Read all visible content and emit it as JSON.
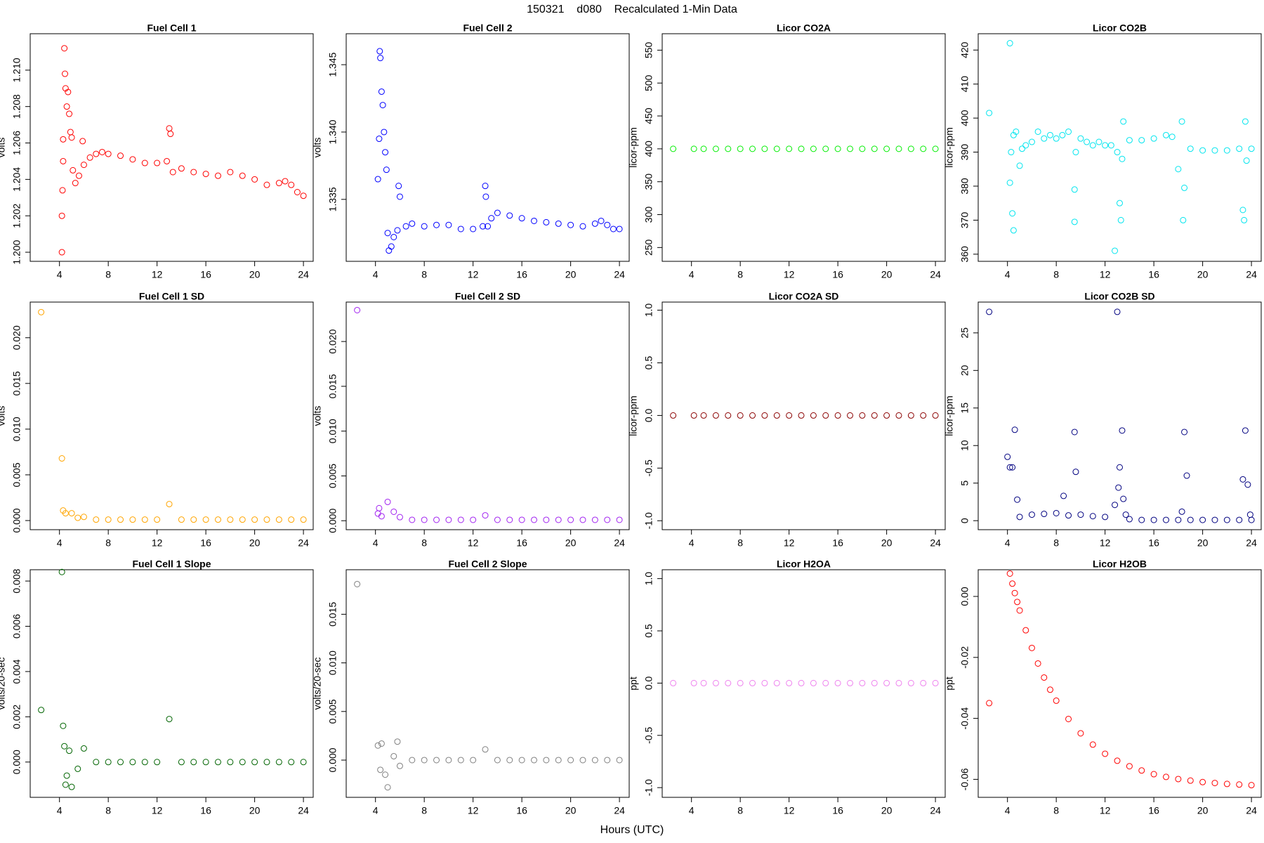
{
  "title": "150321    d080    Recalculated 1-Min Data",
  "xlabel": "Hours (UTC)",
  "chart_data": [
    {
      "type": "scatter",
      "title": "Fuel Cell 1",
      "ylabel": "volts",
      "color": "#ff0000",
      "x": [
        4.2,
        4.2,
        4.25,
        4.3,
        4.3,
        4.4,
        4.45,
        4.5,
        4.6,
        4.7,
        4.8,
        4.9,
        5.0,
        5.1,
        5.3,
        5.6,
        5.9,
        6.0,
        6.5,
        7.0,
        7.5,
        8,
        9,
        10,
        11,
        12,
        12.8,
        13,
        13.1,
        13.3,
        14,
        15,
        16,
        17,
        18,
        19,
        20,
        21,
        22,
        22.5,
        23,
        23.5,
        24
      ],
      "values": [
        1.2,
        1.202,
        1.2034,
        1.205,
        1.2062,
        1.2112,
        1.2098,
        1.209,
        1.208,
        1.2088,
        1.2076,
        1.2066,
        1.2063,
        1.2045,
        1.2038,
        1.2042,
        1.2061,
        1.2048,
        1.2052,
        1.2054,
        1.2055,
        1.2054,
        1.2053,
        1.2051,
        1.2049,
        1.2049,
        1.205,
        1.2068,
        1.2065,
        1.2044,
        1.2046,
        1.2044,
        1.2043,
        1.2042,
        1.2044,
        1.2042,
        1.204,
        1.2037,
        1.2038,
        1.2039,
        1.2037,
        1.2033,
        1.2031
      ],
      "xlim": [
        1.6,
        24.8
      ],
      "xticks": [
        4,
        8,
        12,
        16,
        20,
        24
      ],
      "ylim": [
        1.1995,
        1.212
      ],
      "yticks": [
        {
          "value": 1.2,
          "label": "1.200"
        },
        1.202,
        1.204,
        1.206,
        1.208,
        {
          "value": 1.21,
          "label": "1.210"
        }
      ]
    },
    {
      "type": "scatter",
      "title": "Fuel Cell 2",
      "ylabel": "volts",
      "color": "#0000ff",
      "x": [
        4.2,
        4.3,
        4.35,
        4.4,
        4.5,
        4.6,
        4.7,
        4.8,
        4.9,
        5.0,
        5.1,
        5.3,
        5.5,
        5.8,
        5.9,
        6.0,
        6.5,
        7,
        8,
        9,
        10,
        11,
        12,
        12.8,
        13,
        13.05,
        13.2,
        13.5,
        14,
        15,
        16,
        17,
        18,
        19,
        20,
        21,
        22,
        22.5,
        23,
        23.5,
        24
      ],
      "values": [
        1.3365,
        1.3395,
        1.346,
        1.3455,
        1.343,
        1.342,
        1.34,
        1.3385,
        1.3372,
        1.3325,
        1.3312,
        1.3315,
        1.3322,
        1.3327,
        1.336,
        1.3352,
        1.333,
        1.3332,
        1.333,
        1.3331,
        1.3331,
        1.3328,
        1.3328,
        1.333,
        1.336,
        1.3352,
        1.333,
        1.3336,
        1.334,
        1.3338,
        1.3336,
        1.3334,
        1.3333,
        1.3332,
        1.3331,
        1.333,
        1.3332,
        1.3334,
        1.3331,
        1.3328,
        1.3328
      ],
      "xlim": [
        1.6,
        24.8
      ],
      "xticks": [
        4,
        8,
        12,
        16,
        20,
        24
      ],
      "ylim": [
        1.3304,
        1.3473
      ],
      "yticks": [
        1.335,
        {
          "value": 1.34,
          "label": "1.340"
        },
        1.345
      ]
    },
    {
      "type": "scatter",
      "title": "Licor CO2A",
      "ylabel": "licor-ppm",
      "color": "#00ee00",
      "x": [
        2.5,
        4.2,
        5,
        6,
        7,
        8,
        9,
        10,
        11,
        12,
        13,
        14,
        15,
        16,
        17,
        18,
        19,
        20,
        21,
        22,
        23,
        24
      ],
      "values": [
        400,
        400,
        400,
        400,
        400,
        400,
        400,
        400,
        400,
        400,
        400,
        400,
        400,
        400,
        400,
        400,
        400,
        400,
        400,
        400,
        400,
        400
      ],
      "xlim": [
        1.6,
        24.8
      ],
      "xticks": [
        4,
        8,
        12,
        16,
        20,
        24
      ],
      "ylim": [
        229,
        575
      ],
      "yticks": [
        250,
        300,
        350,
        400,
        450,
        500,
        550
      ]
    },
    {
      "type": "scatter",
      "title": "Licor CO2B",
      "ylabel": "licor-ppm",
      "color": "#00e5ee",
      "x": [
        2.5,
        4.2,
        4.2,
        4.3,
        4.4,
        4.5,
        4.5,
        4.7,
        5,
        5.2,
        5.5,
        6,
        6.5,
        7,
        7.5,
        8,
        8.5,
        9,
        9.5,
        9.5,
        9.6,
        10,
        10.5,
        11,
        11.5,
        12,
        12.5,
        12.8,
        13,
        13.2,
        13.3,
        13.4,
        13.5,
        14,
        15,
        16,
        17,
        17.5,
        18,
        18.3,
        18.4,
        18.5,
        19,
        20,
        21,
        22,
        23,
        23.3,
        23.4,
        23.5,
        23.6,
        24
      ],
      "values": [
        401.5,
        422,
        381,
        390,
        372,
        367,
        395,
        396,
        386,
        391,
        392,
        393,
        396,
        394,
        395,
        394,
        395,
        396,
        379,
        369.5,
        390,
        394,
        393,
        392,
        393,
        392,
        392,
        361,
        390,
        375,
        370,
        388,
        399,
        393.5,
        393.5,
        394,
        395,
        394.5,
        385,
        399,
        370,
        379.5,
        391,
        390.5,
        390.5,
        390.5,
        391,
        373,
        370,
        399,
        387.5,
        391
      ],
      "xlim": [
        1.6,
        24.8
      ],
      "xticks": [
        4,
        8,
        12,
        16,
        20,
        24
      ],
      "ylim": [
        357.9,
        424.8
      ],
      "yticks": [
        360,
        370,
        380,
        390,
        400,
        410,
        420
      ]
    },
    {
      "type": "scatter",
      "title": "Fuel Cell 1 SD",
      "ylabel": "volts",
      "color": "#ffa500",
      "x": [
        2.5,
        4.2,
        4.3,
        4.5,
        5,
        5.5,
        6,
        7,
        8,
        9,
        10,
        11,
        12,
        13,
        14,
        15,
        16,
        17,
        18,
        19,
        20,
        21,
        22,
        23,
        24
      ],
      "values": [
        0.0228,
        0.0068,
        0.0011,
        0.0008,
        0.0008,
        0.0003,
        0.0004,
        0.0001,
        0.0001,
        0.0001,
        0.0001,
        0.0001,
        0.0001,
        0.0018,
        0.0001,
        0.0001,
        0.0001,
        0.0001,
        0.0001,
        0.0001,
        0.0001,
        0.0001,
        0.0001,
        0.0001,
        0.0001
      ],
      "xlim": [
        1.6,
        24.8
      ],
      "xticks": [
        4,
        8,
        12,
        16,
        20,
        24
      ],
      "ylim": [
        -0.001,
        0.0239
      ],
      "yticks": [
        {
          "value": 0,
          "label": "0.000"
        },
        0.005,
        {
          "value": 0.01,
          "label": "0.010"
        },
        0.015,
        {
          "value": 0.02,
          "label": "0.020"
        }
      ]
    },
    {
      "type": "scatter",
      "title": "Fuel Cell 2 SD",
      "ylabel": "volts",
      "color": "#a020f0",
      "x": [
        2.5,
        4.2,
        4.3,
        4.5,
        5,
        5.5,
        6,
        7,
        8,
        9,
        10,
        11,
        12,
        13,
        14,
        15,
        16,
        17,
        18,
        19,
        20,
        21,
        22,
        23,
        24
      ],
      "values": [
        0.0235,
        0.0008,
        0.0014,
        0.0005,
        0.0021,
        0.001,
        0.0004,
        0.0001,
        0.0001,
        0.0001,
        0.0001,
        0.0001,
        0.0001,
        0.0006,
        0.0001,
        0.0001,
        0.0001,
        0.0001,
        0.0001,
        0.0001,
        0.0001,
        0.0001,
        0.0001,
        0.0001,
        0.0001
      ],
      "xlim": [
        1.6,
        24.8
      ],
      "xticks": [
        4,
        8,
        12,
        16,
        20,
        24
      ],
      "ylim": [
        -0.001,
        0.0244
      ],
      "yticks": [
        {
          "value": 0,
          "label": "0.000"
        },
        0.005,
        {
          "value": 0.01,
          "label": "0.010"
        },
        0.015,
        {
          "value": 0.02,
          "label": "0.020"
        }
      ]
    },
    {
      "type": "scatter",
      "title": "Licor CO2A SD",
      "ylabel": "licor-ppm",
      "color": "#8b0000",
      "x": [
        2.5,
        4.2,
        5,
        6,
        7,
        8,
        9,
        10,
        11,
        12,
        13,
        14,
        15,
        16,
        17,
        18,
        19,
        20,
        21,
        22,
        23,
        24
      ],
      "values": [
        0,
        0,
        0,
        0,
        0,
        0,
        0,
        0,
        0,
        0,
        0,
        0,
        0,
        0,
        0,
        0,
        0,
        0,
        0,
        0,
        0,
        0
      ],
      "xlim": [
        1.6,
        24.8
      ],
      "xticks": [
        4,
        8,
        12,
        16,
        20,
        24
      ],
      "ylim": [
        -1.085,
        1.077
      ],
      "yticks": [
        {
          "value": -1,
          "label": "-1.0"
        },
        -0.5,
        {
          "value": 0,
          "label": "0.0"
        },
        0.5,
        {
          "value": 1,
          "label": "1.0"
        }
      ]
    },
    {
      "type": "scatter",
      "title": "Licor CO2B SD",
      "ylabel": "licor-ppm",
      "color": "#000080",
      "x": [
        2.5,
        4,
        4.2,
        4.4,
        4.6,
        4.8,
        5,
        6,
        7,
        8,
        8.6,
        9,
        9.5,
        9.6,
        10,
        11,
        12,
        12.8,
        13,
        13.1,
        13.2,
        13.4,
        13.5,
        13.7,
        14,
        15,
        16,
        17,
        18,
        18.3,
        18.5,
        18.7,
        19,
        20,
        21,
        22,
        23,
        23.3,
        23.5,
        23.7,
        23.9,
        24
      ],
      "values": [
        27.8,
        8.5,
        7.1,
        7.1,
        12.1,
        2.8,
        0.5,
        0.8,
        0.9,
        1.0,
        3.3,
        0.7,
        11.8,
        6.5,
        0.8,
        0.6,
        0.5,
        2.1,
        27.8,
        4.4,
        7.1,
        12.0,
        2.9,
        0.8,
        0.2,
        0.1,
        0.1,
        0.1,
        0.1,
        1.2,
        11.8,
        6.0,
        0.1,
        0.1,
        0.1,
        0.1,
        0.1,
        5.5,
        12.0,
        4.8,
        0.8,
        0.1
      ],
      "xlim": [
        1.6,
        24.8
      ],
      "xticks": [
        4,
        8,
        12,
        16,
        20,
        24
      ],
      "ylim": [
        -1.2,
        29.1
      ],
      "yticks": [
        0,
        5,
        10,
        15,
        20,
        25
      ]
    },
    {
      "type": "scatter",
      "title": "Fuel Cell 1 Slope",
      "ylabel": "volts/20-sec",
      "color": "#006400",
      "x": [
        2.5,
        4.2,
        4.3,
        4.4,
        4.5,
        4.6,
        4.8,
        5,
        5.5,
        6,
        7,
        8,
        9,
        10,
        11,
        12,
        13,
        14,
        15,
        16,
        17,
        18,
        19,
        20,
        21,
        22,
        23,
        24
      ],
      "values": [
        0.0023,
        0.0084,
        0.0016,
        0.0007,
        -0.001,
        -0.0006,
        0.0005,
        -0.0011,
        -0.0003,
        0.0006,
        0,
        0,
        0,
        0,
        0,
        0,
        0.0019,
        0,
        0,
        0,
        0,
        0,
        0,
        0,
        0,
        0,
        0,
        0
      ],
      "xlim": [
        1.6,
        24.8
      ],
      "xticks": [
        4,
        8,
        12,
        16,
        20,
        24
      ],
      "ylim": [
        -0.00156,
        0.0085
      ],
      "yticks": [
        {
          "value": 0,
          "label": "0.000"
        },
        0.002,
        0.004,
        0.006,
        0.008
      ]
    },
    {
      "type": "scatter",
      "title": "Fuel Cell 2 Slope",
      "ylabel": "volts/20-sec",
      "color": "#7f7f7f",
      "x": [
        2.5,
        4.2,
        4.4,
        4.5,
        4.8,
        5,
        5.5,
        5.8,
        6,
        7,
        8,
        9,
        10,
        11,
        12,
        13,
        14,
        15,
        16,
        17,
        18,
        19,
        20,
        21,
        22,
        23,
        24
      ],
      "values": [
        0.0181,
        0.0015,
        -0.001,
        0.0017,
        -0.0015,
        -0.0028,
        0.0004,
        0.0019,
        -0.0006,
        0,
        0,
        0,
        0,
        0,
        0,
        0.0011,
        0,
        0,
        0,
        0,
        0,
        0,
        0,
        0,
        0,
        0,
        0
      ],
      "xlim": [
        1.6,
        24.8
      ],
      "xticks": [
        4,
        8,
        12,
        16,
        20,
        24
      ],
      "ylim": [
        -0.00383,
        0.01958
      ],
      "yticks": [
        {
          "value": 0,
          "label": "0.000"
        },
        0.005,
        {
          "value": 0.01,
          "label": "0.010"
        },
        0.015
      ]
    },
    {
      "type": "scatter",
      "title": "Licor H2OA",
      "ylabel": "ppt",
      "color": "#ee82ee",
      "x": [
        2.5,
        4.2,
        5,
        6,
        7,
        8,
        9,
        10,
        11,
        12,
        13,
        14,
        15,
        16,
        17,
        18,
        19,
        20,
        21,
        22,
        23,
        24
      ],
      "values": [
        0,
        0,
        0,
        0,
        0,
        0,
        0,
        0,
        0,
        0,
        0,
        0,
        0,
        0,
        0,
        0,
        0,
        0,
        0,
        0,
        0,
        0
      ],
      "xlim": [
        1.6,
        24.8
      ],
      "xticks": [
        4,
        8,
        12,
        16,
        20,
        24
      ],
      "ylim": [
        -1.093,
        1.085
      ],
      "yticks": [
        {
          "value": -1,
          "label": "-1.0"
        },
        -0.5,
        {
          "value": 0,
          "label": "0.0"
        },
        0.5,
        {
          "value": 1,
          "label": "1.0"
        }
      ]
    },
    {
      "type": "scatter",
      "title": "Licor H2OB",
      "ylabel": "ppt",
      "color": "#ff0000",
      "x": [
        2.5,
        4.2,
        4.4,
        4.6,
        4.8,
        5,
        5.5,
        6,
        6.5,
        7,
        7.5,
        8,
        9,
        10,
        11,
        12,
        13,
        14,
        15,
        16,
        17,
        18,
        19,
        20,
        21,
        22,
        23,
        24
      ],
      "values": [
        -0.035,
        0.0075,
        0.0042,
        0.0011,
        -0.0018,
        -0.0046,
        -0.0111,
        -0.0169,
        -0.022,
        -0.0266,
        -0.0306,
        -0.0342,
        -0.0402,
        -0.0449,
        -0.0486,
        -0.0516,
        -0.0539,
        -0.0557,
        -0.0571,
        -0.0583,
        -0.0592,
        -0.0599,
        -0.0604,
        -0.0609,
        -0.0612,
        -0.0615,
        -0.0617,
        -0.0619
      ],
      "xlim": [
        1.6,
        24.8
      ],
      "xticks": [
        4,
        8,
        12,
        16,
        20,
        24
      ],
      "ylim": [
        -0.0659,
        0.00876
      ],
      "yticks": [
        -0.06,
        -0.04,
        -0.02,
        {
          "value": 0,
          "label": "0.00"
        }
      ]
    }
  ]
}
